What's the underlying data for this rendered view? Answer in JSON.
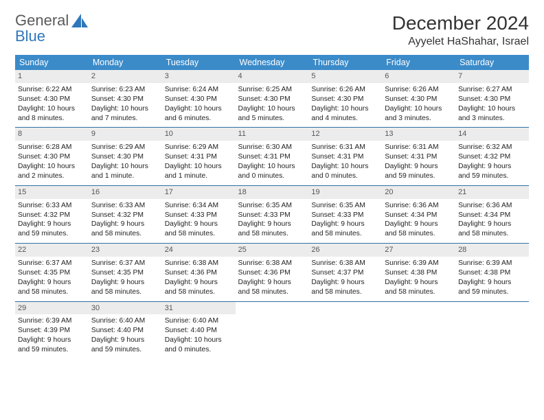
{
  "brand": {
    "word1": "General",
    "word2": "Blue",
    "accent": "#2e77bb"
  },
  "title": "December 2024",
  "location": "Ayyelet HaShahar, Israel",
  "colors": {
    "header_bg": "#3b8bc9",
    "header_fg": "#ffffff",
    "row_border": "#2e6fa3",
    "daynum_bg": "#ececec",
    "page_bg": "#ffffff",
    "text": "#222222"
  },
  "weekdays": [
    "Sunday",
    "Monday",
    "Tuesday",
    "Wednesday",
    "Thursday",
    "Friday",
    "Saturday"
  ],
  "weeks": [
    [
      {
        "n": "1",
        "sr": "Sunrise: 6:22 AM",
        "ss": "Sunset: 4:30 PM",
        "d1": "Daylight: 10 hours",
        "d2": "and 8 minutes."
      },
      {
        "n": "2",
        "sr": "Sunrise: 6:23 AM",
        "ss": "Sunset: 4:30 PM",
        "d1": "Daylight: 10 hours",
        "d2": "and 7 minutes."
      },
      {
        "n": "3",
        "sr": "Sunrise: 6:24 AM",
        "ss": "Sunset: 4:30 PM",
        "d1": "Daylight: 10 hours",
        "d2": "and 6 minutes."
      },
      {
        "n": "4",
        "sr": "Sunrise: 6:25 AM",
        "ss": "Sunset: 4:30 PM",
        "d1": "Daylight: 10 hours",
        "d2": "and 5 minutes."
      },
      {
        "n": "5",
        "sr": "Sunrise: 6:26 AM",
        "ss": "Sunset: 4:30 PM",
        "d1": "Daylight: 10 hours",
        "d2": "and 4 minutes."
      },
      {
        "n": "6",
        "sr": "Sunrise: 6:26 AM",
        "ss": "Sunset: 4:30 PM",
        "d1": "Daylight: 10 hours",
        "d2": "and 3 minutes."
      },
      {
        "n": "7",
        "sr": "Sunrise: 6:27 AM",
        "ss": "Sunset: 4:30 PM",
        "d1": "Daylight: 10 hours",
        "d2": "and 3 minutes."
      }
    ],
    [
      {
        "n": "8",
        "sr": "Sunrise: 6:28 AM",
        "ss": "Sunset: 4:30 PM",
        "d1": "Daylight: 10 hours",
        "d2": "and 2 minutes."
      },
      {
        "n": "9",
        "sr": "Sunrise: 6:29 AM",
        "ss": "Sunset: 4:30 PM",
        "d1": "Daylight: 10 hours",
        "d2": "and 1 minute."
      },
      {
        "n": "10",
        "sr": "Sunrise: 6:29 AM",
        "ss": "Sunset: 4:31 PM",
        "d1": "Daylight: 10 hours",
        "d2": "and 1 minute."
      },
      {
        "n": "11",
        "sr": "Sunrise: 6:30 AM",
        "ss": "Sunset: 4:31 PM",
        "d1": "Daylight: 10 hours",
        "d2": "and 0 minutes."
      },
      {
        "n": "12",
        "sr": "Sunrise: 6:31 AM",
        "ss": "Sunset: 4:31 PM",
        "d1": "Daylight: 10 hours",
        "d2": "and 0 minutes."
      },
      {
        "n": "13",
        "sr": "Sunrise: 6:31 AM",
        "ss": "Sunset: 4:31 PM",
        "d1": "Daylight: 9 hours",
        "d2": "and 59 minutes."
      },
      {
        "n": "14",
        "sr": "Sunrise: 6:32 AM",
        "ss": "Sunset: 4:32 PM",
        "d1": "Daylight: 9 hours",
        "d2": "and 59 minutes."
      }
    ],
    [
      {
        "n": "15",
        "sr": "Sunrise: 6:33 AM",
        "ss": "Sunset: 4:32 PM",
        "d1": "Daylight: 9 hours",
        "d2": "and 59 minutes."
      },
      {
        "n": "16",
        "sr": "Sunrise: 6:33 AM",
        "ss": "Sunset: 4:32 PM",
        "d1": "Daylight: 9 hours",
        "d2": "and 58 minutes."
      },
      {
        "n": "17",
        "sr": "Sunrise: 6:34 AM",
        "ss": "Sunset: 4:33 PM",
        "d1": "Daylight: 9 hours",
        "d2": "and 58 minutes."
      },
      {
        "n": "18",
        "sr": "Sunrise: 6:35 AM",
        "ss": "Sunset: 4:33 PM",
        "d1": "Daylight: 9 hours",
        "d2": "and 58 minutes."
      },
      {
        "n": "19",
        "sr": "Sunrise: 6:35 AM",
        "ss": "Sunset: 4:33 PM",
        "d1": "Daylight: 9 hours",
        "d2": "and 58 minutes."
      },
      {
        "n": "20",
        "sr": "Sunrise: 6:36 AM",
        "ss": "Sunset: 4:34 PM",
        "d1": "Daylight: 9 hours",
        "d2": "and 58 minutes."
      },
      {
        "n": "21",
        "sr": "Sunrise: 6:36 AM",
        "ss": "Sunset: 4:34 PM",
        "d1": "Daylight: 9 hours",
        "d2": "and 58 minutes."
      }
    ],
    [
      {
        "n": "22",
        "sr": "Sunrise: 6:37 AM",
        "ss": "Sunset: 4:35 PM",
        "d1": "Daylight: 9 hours",
        "d2": "and 58 minutes."
      },
      {
        "n": "23",
        "sr": "Sunrise: 6:37 AM",
        "ss": "Sunset: 4:35 PM",
        "d1": "Daylight: 9 hours",
        "d2": "and 58 minutes."
      },
      {
        "n": "24",
        "sr": "Sunrise: 6:38 AM",
        "ss": "Sunset: 4:36 PM",
        "d1": "Daylight: 9 hours",
        "d2": "and 58 minutes."
      },
      {
        "n": "25",
        "sr": "Sunrise: 6:38 AM",
        "ss": "Sunset: 4:36 PM",
        "d1": "Daylight: 9 hours",
        "d2": "and 58 minutes."
      },
      {
        "n": "26",
        "sr": "Sunrise: 6:38 AM",
        "ss": "Sunset: 4:37 PM",
        "d1": "Daylight: 9 hours",
        "d2": "and 58 minutes."
      },
      {
        "n": "27",
        "sr": "Sunrise: 6:39 AM",
        "ss": "Sunset: 4:38 PM",
        "d1": "Daylight: 9 hours",
        "d2": "and 58 minutes."
      },
      {
        "n": "28",
        "sr": "Sunrise: 6:39 AM",
        "ss": "Sunset: 4:38 PM",
        "d1": "Daylight: 9 hours",
        "d2": "and 59 minutes."
      }
    ],
    [
      {
        "n": "29",
        "sr": "Sunrise: 6:39 AM",
        "ss": "Sunset: 4:39 PM",
        "d1": "Daylight: 9 hours",
        "d2": "and 59 minutes."
      },
      {
        "n": "30",
        "sr": "Sunrise: 6:40 AM",
        "ss": "Sunset: 4:40 PM",
        "d1": "Daylight: 9 hours",
        "d2": "and 59 minutes."
      },
      {
        "n": "31",
        "sr": "Sunrise: 6:40 AM",
        "ss": "Sunset: 4:40 PM",
        "d1": "Daylight: 10 hours",
        "d2": "and 0 minutes."
      },
      null,
      null,
      null,
      null
    ]
  ]
}
